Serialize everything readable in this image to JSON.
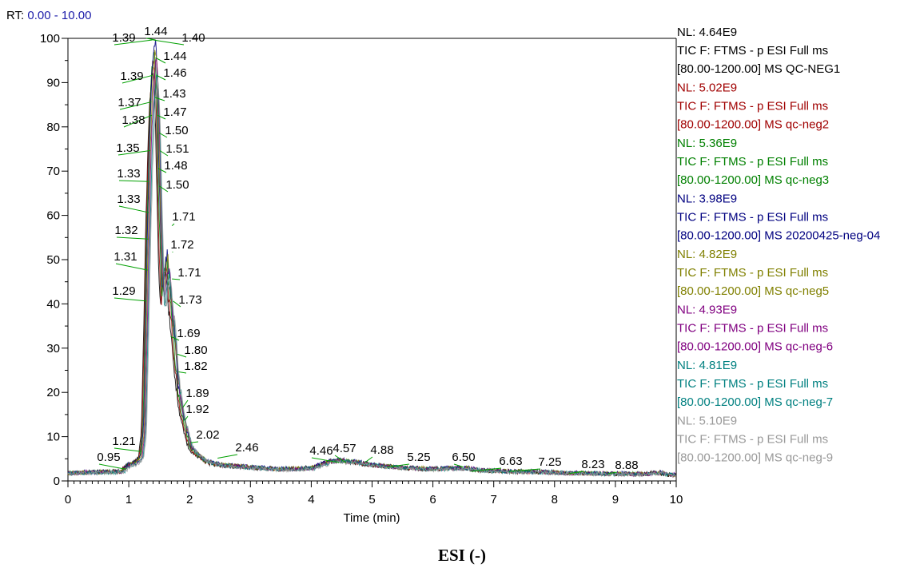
{
  "rt_range": {
    "prefix": "RT: ",
    "value": "0.00 - 10.00"
  },
  "caption": "ESI (-)",
  "chart_data": {
    "type": "line",
    "title": "",
    "xlabel": "Time (min)",
    "ylabel": "",
    "xlim": [
      0,
      10
    ],
    "ylim": [
      0,
      100
    ],
    "xticks": [
      0,
      1,
      2,
      3,
      4,
      5,
      6,
      7,
      8,
      9,
      10
    ],
    "yticks": [
      0,
      10,
      20,
      30,
      40,
      50,
      60,
      70,
      80,
      90,
      100
    ],
    "grid": false,
    "legend_position": "right",
    "series": [
      {
        "nl": "NL: 4.64E9",
        "trace": "TIC F: FTMS - p ESI Full ms",
        "range": "[80.00-1200.00]  MS QC-NEG1",
        "color": "#000000"
      },
      {
        "nl": "NL: 5.02E9",
        "trace": "TIC F: FTMS - p ESI Full ms",
        "range": "[80.00-1200.00]  MS qc-neg2",
        "color": "#a00000"
      },
      {
        "nl": "NL: 5.36E9",
        "trace": "TIC F: FTMS - p ESI Full ms",
        "range": "[80.00-1200.00]  MS qc-neg3",
        "color": "#008000"
      },
      {
        "nl": "NL: 3.98E9",
        "trace": "TIC F: FTMS - p ESI Full ms",
        "range": "[80.00-1200.00]  MS 20200425-neg-04",
        "color": "#000080"
      },
      {
        "nl": "NL: 4.82E9",
        "trace": "TIC F: FTMS - p ESI Full ms",
        "range": "[80.00-1200.00]  MS qc-neg5",
        "color": "#808000"
      },
      {
        "nl": "NL: 4.93E9",
        "trace": "TIC F: FTMS - p ESI Full ms",
        "range": "[80.00-1200.00]  MS qc-neg-6",
        "color": "#800080"
      },
      {
        "nl": "NL: 4.81E9",
        "trace": "TIC F: FTMS - p ESI Full ms",
        "range": "[80.00-1200.00]  MS qc-neg-7",
        "color": "#008080"
      },
      {
        "nl": "NL: 5.10E9",
        "trace": "TIC F: FTMS - p ESI Full ms",
        "range": "[80.00-1200.00]  MS qc-neg-9",
        "color": "#999999"
      }
    ],
    "profile": {
      "x": [
        0,
        0.3,
        0.6,
        0.9,
        1.0,
        1.1,
        1.2,
        1.25,
        1.29,
        1.31,
        1.33,
        1.35,
        1.37,
        1.39,
        1.42,
        1.44,
        1.46,
        1.48,
        1.5,
        1.53,
        1.56,
        1.6,
        1.64,
        1.68,
        1.71,
        1.74,
        1.78,
        1.82,
        1.88,
        1.95,
        2.02,
        2.15,
        2.3,
        2.5,
        3.0,
        3.5,
        4.0,
        4.3,
        4.5,
        4.8,
        5.0,
        5.5,
        6.0,
        6.5,
        6.8,
        7.0,
        7.5,
        8.0,
        8.5,
        9.0,
        9.5,
        9.75,
        9.85,
        10.0
      ],
      "y": [
        1.8,
        2.0,
        2.1,
        2.3,
        3.8,
        4.2,
        5.5,
        12,
        40,
        55,
        67,
        78,
        86,
        93,
        99,
        100,
        96,
        88,
        72,
        55,
        42,
        48,
        52,
        45,
        40,
        36,
        28,
        22,
        16,
        12,
        8,
        6,
        4.5,
        3.8,
        3.2,
        2.8,
        3.0,
        4.5,
        4.8,
        4.3,
        3.8,
        3.1,
        2.8,
        3.1,
        2.6,
        2.4,
        2.2,
        2.0,
        1.8,
        1.7,
        1.6,
        2.0,
        1.5,
        1.4
      ]
    },
    "peak_labels": [
      {
        "text": "1.39",
        "x": 1.39,
        "y": 100
      },
      {
        "text": "1.44",
        "x": 1.44,
        "y": 100
      },
      {
        "text": "1.40",
        "x": 1.4,
        "y": 100
      },
      {
        "text": "1.44",
        "x": 1.44,
        "y": 96
      },
      {
        "text": "1.39",
        "x": 1.39,
        "y": 92
      },
      {
        "text": "1.46",
        "x": 1.46,
        "y": 92
      },
      {
        "text": "1.37",
        "x": 1.37,
        "y": 86
      },
      {
        "text": "1.43",
        "x": 1.43,
        "y": 87
      },
      {
        "text": "1.38",
        "x": 1.38,
        "y": 83
      },
      {
        "text": "1.47",
        "x": 1.47,
        "y": 83
      },
      {
        "text": "1.50",
        "x": 1.5,
        "y": 79
      },
      {
        "text": "1.35",
        "x": 1.35,
        "y": 75
      },
      {
        "text": "1.51",
        "x": 1.51,
        "y": 75
      },
      {
        "text": "1.33",
        "x": 1.33,
        "y": 68
      },
      {
        "text": "1.48",
        "x": 1.48,
        "y": 71
      },
      {
        "text": "1.50",
        "x": 1.5,
        "y": 67
      },
      {
        "text": "1.33",
        "x": 1.33,
        "y": 61
      },
      {
        "text": "1.71",
        "x": 1.71,
        "y": 58
      },
      {
        "text": "1.32",
        "x": 1.32,
        "y": 55
      },
      {
        "text": "1.72",
        "x": 1.72,
        "y": 52
      },
      {
        "text": "1.31",
        "x": 1.31,
        "y": 48
      },
      {
        "text": "1.71",
        "x": 1.71,
        "y": 46
      },
      {
        "text": "1.29",
        "x": 1.29,
        "y": 41
      },
      {
        "text": "1.73",
        "x": 1.73,
        "y": 41
      },
      {
        "text": "1.69",
        "x": 1.69,
        "y": 33
      },
      {
        "text": "1.80",
        "x": 1.8,
        "y": 29
      },
      {
        "text": "1.82",
        "x": 1.82,
        "y": 25
      },
      {
        "text": "1.89",
        "x": 1.89,
        "y": 17
      },
      {
        "text": "1.92",
        "x": 1.92,
        "y": 14
      },
      {
        "text": "1.21",
        "x": 1.21,
        "y": 7
      },
      {
        "text": "2.02",
        "x": 2.02,
        "y": 9
      },
      {
        "text": "0.95",
        "x": 0.95,
        "y": 3
      },
      {
        "text": "2.46",
        "x": 2.46,
        "y": 5.5
      },
      {
        "text": "4.46",
        "x": 4.46,
        "y": 4.5
      },
      {
        "text": "4.57",
        "x": 4.57,
        "y": 4.5
      },
      {
        "text": "4.88",
        "x": 4.88,
        "y": 4.5
      },
      {
        "text": "5.25",
        "x": 5.25,
        "y": 3.5
      },
      {
        "text": "6.50",
        "x": 6.5,
        "y": 3.5
      },
      {
        "text": "6.63",
        "x": 6.63,
        "y": 2.5
      },
      {
        "text": "7.25",
        "x": 7.25,
        "y": 2.5
      },
      {
        "text": "8.23",
        "x": 8.23,
        "y": 2
      },
      {
        "text": "8.88",
        "x": 8.88,
        "y": 2
      }
    ]
  }
}
